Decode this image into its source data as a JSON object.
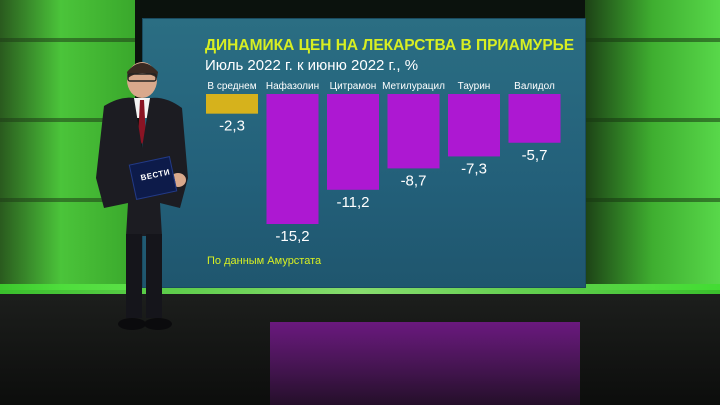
{
  "chart_data": {
    "type": "bar",
    "title": "ДИНАМИКА ЦЕН НА ЛЕКАРСТВА В ПРИАМУРЬЕ",
    "subtitle": "Июль 2022 г. к июню 2022 г., %",
    "source": "По данным Амурстата",
    "categories": [
      "В среднем",
      "Нафазолин",
      "Цитрамон",
      "Метилурацил",
      "Таурин",
      "Валидол"
    ],
    "values": [
      -2.3,
      -15.2,
      -11.2,
      -8.7,
      -7.3,
      -5.7
    ],
    "value_labels": [
      "-2,3",
      "-15,2",
      "-11,2",
      "-8,7",
      "-7,3",
      "-5,7"
    ],
    "colors": [
      "#d6b21c",
      "#ad18d2",
      "#ad18d2",
      "#ad18d2",
      "#ad18d2",
      "#ad18d2"
    ],
    "ylim": [
      -15.2,
      0
    ],
    "grid": false,
    "legend": "none"
  },
  "branding": {
    "logo_text": "ВЕСТИ"
  }
}
